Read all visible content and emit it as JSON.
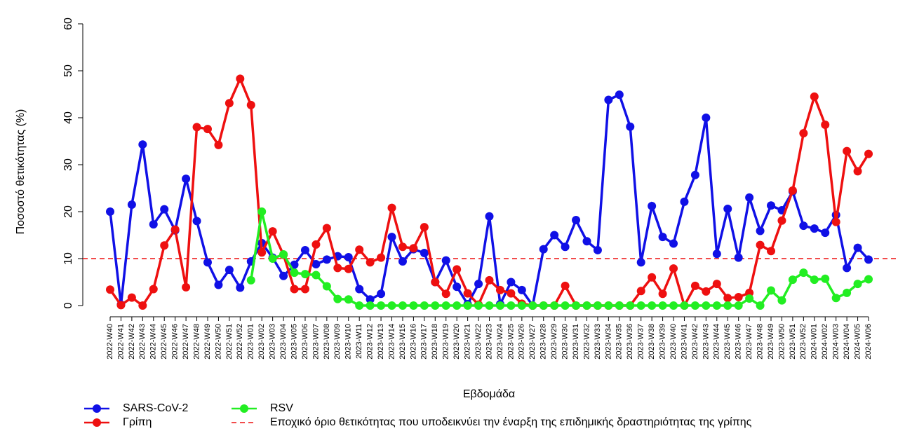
{
  "chart_data": {
    "type": "line",
    "y_label": "Ποσοστό θετικότητας (%)",
    "x_label": "Εβδομάδα",
    "categories": [
      "2022-W40",
      "2022-W41",
      "2022-W42",
      "2022-W43",
      "2022-W44",
      "2022-W45",
      "2022-W46",
      "2022-W47",
      "2022-W48",
      "2022-W49",
      "2022-W50",
      "2022-W51",
      "2022-W52",
      "2023-W01",
      "2023-W02",
      "2023-W03",
      "2023-W04",
      "2023-W05",
      "2023-W06",
      "2023-W07",
      "2023-W08",
      "2023-W09",
      "2023-W10",
      "2023-W11",
      "2023-W12",
      "2023-W13",
      "2023-W14",
      "2023-W15",
      "2023-W16",
      "2023-W17",
      "2023-W18",
      "2023-W19",
      "2023-W20",
      "2023-W21",
      "2023-W22",
      "2023-W23",
      "2023-W24",
      "2023-W25",
      "2023-W26",
      "2023-W27",
      "2023-W28",
      "2023-W29",
      "2023-W30",
      "2023-W31",
      "2023-W32",
      "2023-W33",
      "2023-W34",
      "2023-W35",
      "2023-W36",
      "2023-W37",
      "2023-W38",
      "2023-W39",
      "2023-W40",
      "2023-W41",
      "2023-W42",
      "2023-W43",
      "2023-W44",
      "2023-W45",
      "2023-W46",
      "2023-W47",
      "2023-W48",
      "2023-W49",
      "2023-W50",
      "2023-W51",
      "2023-W52",
      "2024-W01",
      "2024-W02",
      "2024-W03",
      "2024-W04",
      "2024-W05",
      "2024-W06"
    ],
    "series": [
      {
        "name": "SARS-CoV-2",
        "color": "#1010e6",
        "values": [
          20,
          0.2,
          21.5,
          34.3,
          17.3,
          20.5,
          16,
          27,
          18,
          9.2,
          4.4,
          7.6,
          3.8,
          9.4,
          13.3,
          10.2,
          6.3,
          8.7,
          11.8,
          8.8,
          9.8,
          10.5,
          10.3,
          3.5,
          1.3,
          2.5,
          14.6,
          9.4,
          12,
          11.2,
          5,
          9.6,
          4,
          0.3,
          4.6,
          19,
          0.3,
          5,
          3.3,
          0,
          12,
          15,
          12.5,
          18.2,
          13.7,
          11.8,
          43.8,
          44.9,
          38.1,
          9.2,
          21.2,
          14.6,
          13.2,
          22.1,
          27.8,
          40,
          11,
          20.6,
          10.2,
          23,
          15.9,
          21.3,
          20.3,
          24.3,
          17,
          16.4,
          15.5,
          19.3,
          8,
          12.3,
          9.8
        ]
      },
      {
        "name": "Γρίπη",
        "color": "#ee1010",
        "values": [
          3.4,
          0.1,
          1.7,
          0,
          3.5,
          12.8,
          16.2,
          3.9,
          38,
          37.6,
          34.2,
          43.1,
          48.3,
          42.7,
          11.3,
          15.8,
          10.8,
          3.5,
          3.5,
          13,
          16.5,
          8,
          7.8,
          11.9,
          9.2,
          10.2,
          20.8,
          12.5,
          12.2,
          16.7,
          5,
          2.5,
          7.7,
          2.6,
          0.2,
          5.4,
          3.3,
          2.6,
          0.4,
          0,
          0,
          0,
          4.2,
          0,
          0,
          0,
          0,
          0,
          0,
          3.1,
          6,
          2.5,
          7.9,
          0,
          4.2,
          3,
          4.6,
          1.6,
          1.8,
          2.7,
          12.9,
          11.6,
          18.1,
          24.5,
          36.7,
          44.5,
          38.5,
          17.8,
          32.9,
          28.6,
          32.3
        ]
      },
      {
        "name": "RSV",
        "color": "#22ee22",
        "values": [
          null,
          null,
          null,
          null,
          null,
          null,
          null,
          null,
          null,
          null,
          null,
          null,
          null,
          5.4,
          20,
          10,
          10.9,
          7,
          6.7,
          6.5,
          4.1,
          1.4,
          1.3,
          0,
          0,
          0,
          0,
          0,
          0,
          0,
          0,
          0,
          0,
          0,
          0,
          0,
          0,
          0,
          0,
          0,
          0,
          0,
          0,
          0,
          0,
          0,
          0,
          0,
          0,
          0,
          0,
          0,
          0,
          0,
          0,
          0,
          0,
          0,
          0,
          1.5,
          0,
          3.2,
          1.1,
          5.5,
          7,
          5.5,
          5.7,
          1.6,
          2.7,
          4.6,
          5.6
        ]
      }
    ],
    "threshold": 10,
    "threshold_color": "#ee1010",
    "threshold_label": "Εποχικό όριο θετικότητας που υποδεικνύει την έναρξη της επιδημικής δραστηριότητας της γρίπης",
    "ylim": [
      0,
      60
    ],
    "yticks": [
      0,
      10,
      20,
      30,
      40,
      50,
      60
    ]
  }
}
